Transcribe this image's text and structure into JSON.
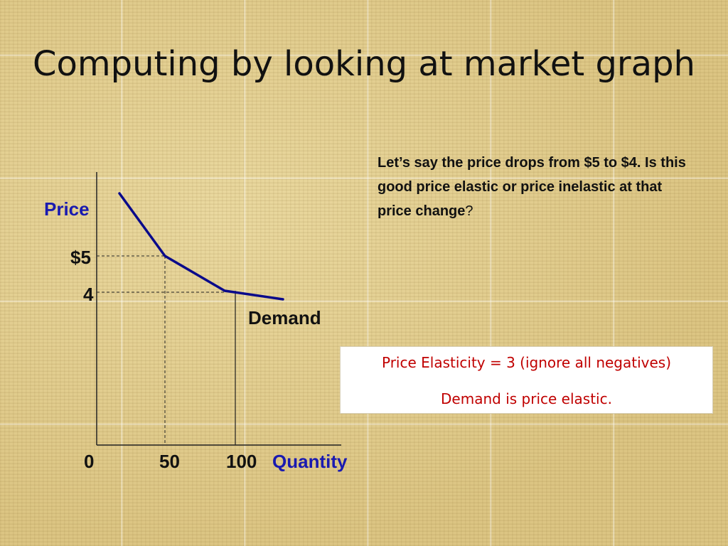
{
  "slide": {
    "title": "Computing by looking at market graph",
    "question": "Let’s say the price drops from $5 to $4.  Is this good price elastic or price inelastic at that price change",
    "question_end": "?",
    "answer_line_1": "Price Elasticity = 3 (ignore all negatives)",
    "answer_line_2": "Demand is price elastic."
  },
  "graph": {
    "y_axis_label": "Price",
    "x_axis_label": "Quantity",
    "curve_label": "Demand",
    "price_high_label": "$5",
    "price_low_label": "4",
    "qty_origin_label": "0",
    "qty_1_label": "50",
    "qty_2_label": "100"
  },
  "colors": {
    "curve": "#0a0a8a",
    "axis_label_blue": "#1a1ab0",
    "answer_text": "#c00000"
  }
}
